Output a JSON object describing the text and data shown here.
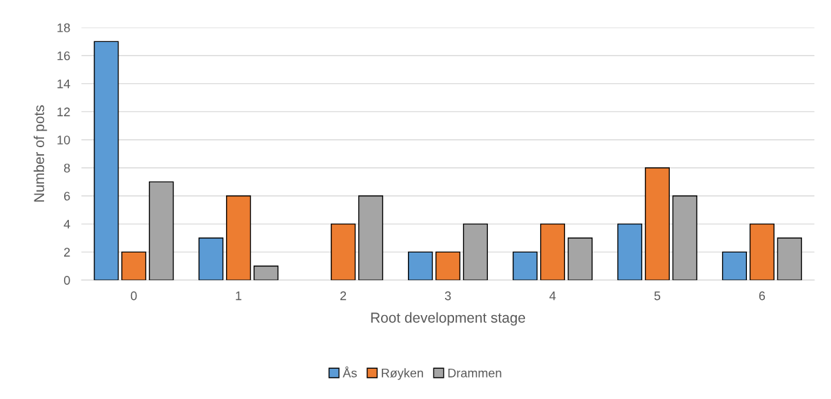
{
  "chart_data": {
    "type": "bar",
    "xlabel": "Root development stage",
    "ylabel": "Number of pots",
    "categories": [
      "0",
      "1",
      "2",
      "3",
      "4",
      "5",
      "6"
    ],
    "series": [
      {
        "name": "Ås",
        "color": "#5b9bd5",
        "values": [
          17,
          3,
          null,
          2,
          2,
          4,
          2
        ]
      },
      {
        "name": "Røyken",
        "color": "#ed7d31",
        "values": [
          2,
          6,
          4,
          2,
          4,
          8,
          4
        ]
      },
      {
        "name": "Drammen",
        "color": "#a5a5a5",
        "values": [
          7,
          1,
          6,
          4,
          3,
          6,
          3
        ]
      }
    ],
    "ylim": [
      0,
      18
    ],
    "yticks": [
      0,
      2,
      4,
      6,
      8,
      10,
      12,
      14,
      16,
      18
    ],
    "grid": "y",
    "legend": "bottom"
  }
}
